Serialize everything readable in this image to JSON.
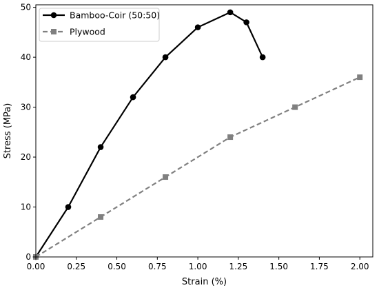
{
  "chart_data": {
    "type": "line",
    "xlabel": "Strain (%)",
    "ylabel": "Stress (MPa)",
    "xlim": [
      0.0,
      2.08
    ],
    "ylim": [
      0,
      50.5
    ],
    "xticks": [
      "0.00",
      "0.25",
      "0.50",
      "0.75",
      "1.00",
      "1.25",
      "1.50",
      "1.75",
      "2.00"
    ],
    "yticks": [
      "0",
      "10",
      "20",
      "30",
      "40",
      "50"
    ],
    "grid": false,
    "legend_position": "top-left",
    "series": [
      {
        "name": "Bamboo-Coir (50:50)",
        "color": "#000000",
        "line_style": "solid",
        "marker": "circle",
        "x": [
          0.0,
          0.2,
          0.4,
          0.6,
          0.8,
          1.0,
          1.2,
          1.3,
          1.4
        ],
        "y": [
          0,
          10,
          22,
          32,
          40,
          46,
          49,
          47,
          40
        ]
      },
      {
        "name": "Plywood",
        "color": "#808080",
        "line_style": "dashed",
        "marker": "square",
        "x": [
          0.0,
          0.4,
          0.8,
          1.2,
          1.6,
          2.0
        ],
        "y": [
          0,
          8,
          16,
          24,
          30,
          36
        ]
      }
    ]
  }
}
